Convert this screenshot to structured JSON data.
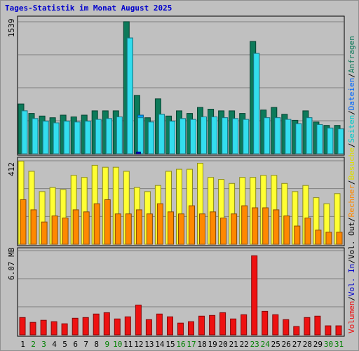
{
  "chart_data": {
    "type": "bar",
    "title": "Tages-Statistik im Monat August 2025",
    "days": [
      "1",
      "2",
      "3",
      "4",
      "5",
      "6",
      "7",
      "8",
      "9",
      "10",
      "11",
      "12",
      "13",
      "14",
      "15",
      "16",
      "17",
      "18",
      "19",
      "20",
      "21",
      "22",
      "23",
      "24",
      "25",
      "26",
      "27",
      "28",
      "29",
      "30",
      "31"
    ],
    "weekend_days": [
      "2",
      "3",
      "9",
      "10",
      "16",
      "17",
      "23",
      "24",
      "30",
      "31"
    ],
    "panels": [
      {
        "name": "top",
        "max_label": "1539",
        "max": 1539,
        "series": [
          {
            "name": "Anfragen",
            "color": "#0d7a5a",
            "values": [
              580,
              470,
              440,
              420,
              450,
              430,
              450,
              500,
              500,
              500,
              1540,
              680,
              420,
              640,
              440,
              500,
              470,
              540,
              520,
              500,
              500,
              470,
              1310,
              510,
              540,
              460,
              390,
              500,
              370,
              330,
              330
            ]
          },
          {
            "name": "Dateien",
            "color": "#00a0ff",
            "values": [
              500,
              410,
              380,
              360,
              380,
              370,
              380,
              400,
              410,
              430,
              1350,
              450,
              370,
              460,
              380,
              410,
              400,
              430,
              430,
              420,
              410,
              400,
              1170,
              420,
              420,
              400,
              350,
              420,
              340,
              300,
              290
            ]
          },
          {
            "name": "Seiten",
            "color": "#33ddee",
            "values": [
              500,
              410,
              380,
              360,
              380,
              370,
              380,
              400,
              410,
              430,
              1350,
              420,
              370,
              460,
              380,
              410,
              400,
              430,
              430,
              420,
              410,
              400,
              1170,
              420,
              420,
              400,
              350,
              420,
              340,
              300,
              290
            ]
          },
          {
            "name": "Vol. In",
            "color": "#0000cc",
            "values": [
              0,
              0,
              0,
              0,
              0,
              0,
              0,
              0,
              0,
              0,
              0,
              20,
              0,
              0,
              0,
              0,
              0,
              0,
              0,
              0,
              0,
              0,
              0,
              0,
              0,
              0,
              0,
              0,
              0,
              0,
              0
            ]
          }
        ]
      },
      {
        "name": "middle",
        "max_label": "412",
        "max": 412,
        "series": [
          {
            "name": "Besuche",
            "color": "#ffff33",
            "values": [
              410,
              360,
              260,
              280,
              270,
              340,
              330,
              390,
              380,
              380,
              360,
              280,
              260,
              290,
              360,
              370,
              370,
              400,
              330,
              320,
              300,
              330,
              330,
              340,
              340,
              300,
              260,
              290,
              230,
              200,
              250
            ]
          },
          {
            "name": "Rechner",
            "color": "#ff8800",
            "values": [
              220,
              170,
              110,
              140,
              130,
              170,
              160,
              200,
              220,
              150,
              150,
              170,
              150,
              200,
              160,
              150,
              190,
              150,
              160,
              130,
              150,
              190,
              180,
              180,
              170,
              140,
              90,
              130,
              70,
              60,
              60
            ]
          }
        ]
      },
      {
        "name": "bottom",
        "max_label": "6.07 MB",
        "max": 6.07,
        "series": [
          {
            "name": "Volumen",
            "color": "#ee1111",
            "values": [
              1.25,
              0.9,
              1.05,
              0.95,
              0.8,
              1.2,
              1.25,
              1.5,
              1.6,
              1.15,
              1.3,
              2.15,
              1.1,
              1.5,
              1.3,
              0.85,
              0.95,
              1.35,
              1.4,
              1.6,
              1.15,
              1.45,
              5.7,
              1.7,
              1.45,
              1.1,
              0.6,
              1.25,
              1.35,
              0.65,
              0.65
            ]
          }
        ]
      }
    ],
    "legend": [
      {
        "text": "Volumen",
        "color": "#ee1111"
      },
      {
        "text": "/",
        "color": "#000000"
      },
      {
        "text": "Vol. In",
        "color": "#0000cc"
      },
      {
        "text": "/",
        "color": "#000000"
      },
      {
        "text": "Vol. Out",
        "color": "#000000"
      },
      {
        "text": "/",
        "color": "#000000"
      },
      {
        "text": "Rechner",
        "color": "#ff8800"
      },
      {
        "text": "/",
        "color": "#000000"
      },
      {
        "text": "Besuche",
        "color": "#dddd00"
      },
      {
        "text": "/",
        "color": "#000000"
      },
      {
        "text": "Seiten",
        "color": "#00cccc"
      },
      {
        "text": "/",
        "color": "#000000"
      },
      {
        "text": "Dateien",
        "color": "#0066ff"
      },
      {
        "text": "/",
        "color": "#000000"
      },
      {
        "text": "Anfragen",
        "color": "#0d7a5a"
      }
    ]
  }
}
